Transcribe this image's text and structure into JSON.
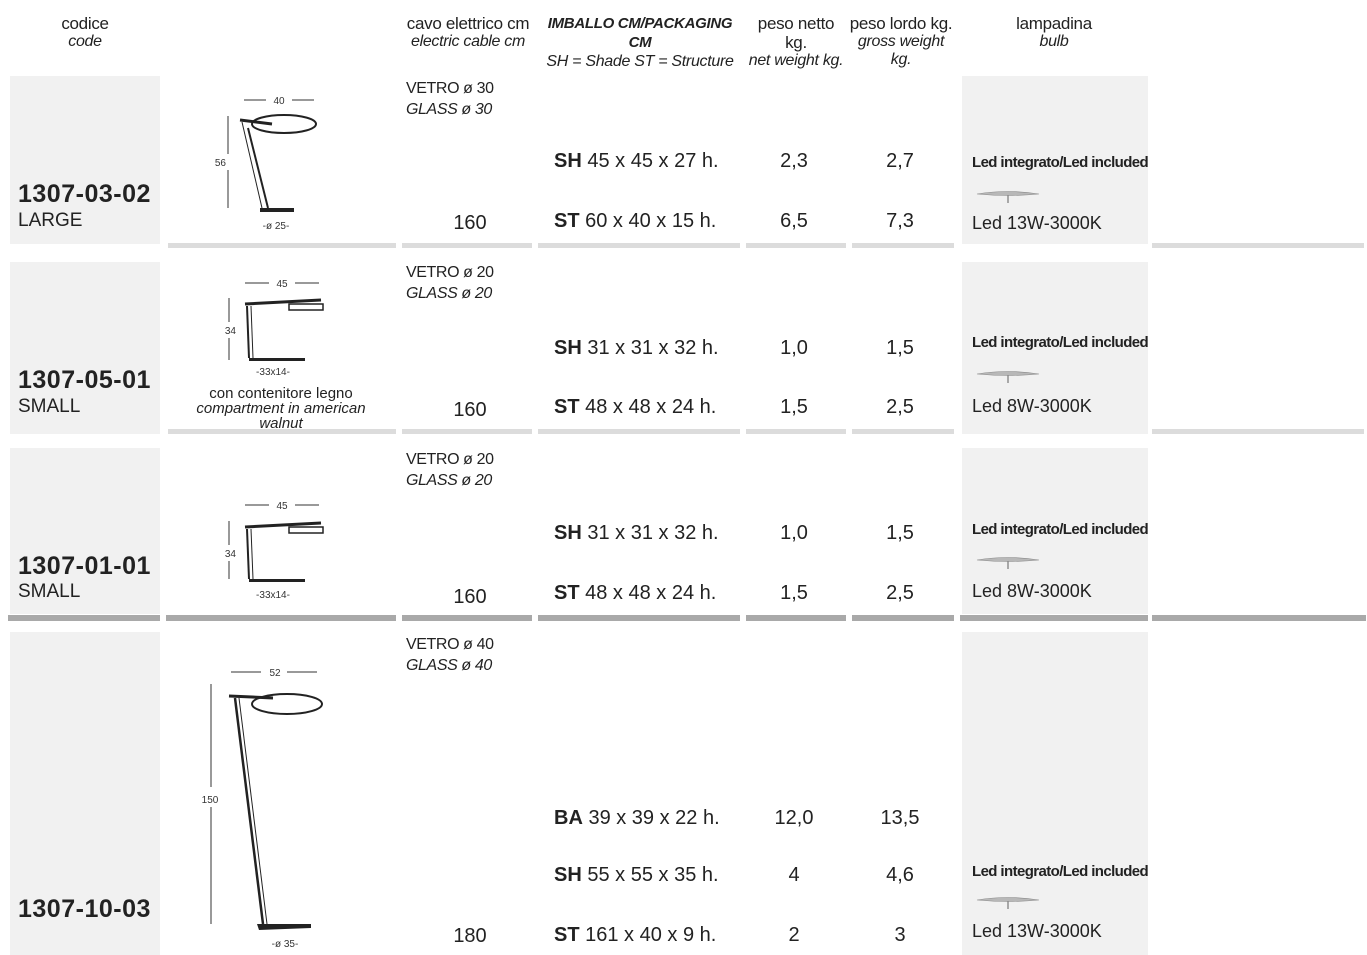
{
  "header": {
    "code_it": "codice",
    "code_en": "code",
    "cable_it": "cavo elettrico cm",
    "cable_en": "electric cable cm",
    "pack_it": "IMBALLO CM/PACKAGING CM",
    "pack_en": "SH = Shade   ST = Structure",
    "net_it": "peso netto kg.",
    "net_en": "net weight kg.",
    "gross_it": "peso lordo kg.",
    "gross_en": "gross weight kg.",
    "bulb_it": "lampadina",
    "bulb_en": "bulb"
  },
  "rows": [
    {
      "code": "1307-03-02",
      "size": "LARGE",
      "glass_it": "VETRO ø 30",
      "glass_en": "GLASS ø 30",
      "cable": "160",
      "packages": [
        {
          "prefix": "SH",
          "dims": " 45 x 45 x 27 h.",
          "net": "2,3",
          "gross": "2,7"
        },
        {
          "prefix": "ST",
          "dims": " 60 x 40 x 15 h.",
          "net": "6,5",
          "gross": "7,3"
        }
      ],
      "led_included": "Led integrato/Led included",
      "lamp": "Led 13W-3000K",
      "dims_drawing": {
        "width": "40",
        "height": "56",
        "base": "-ø 25-"
      }
    },
    {
      "code": "1307-05-01",
      "size": "SMALL",
      "glass_it": "VETRO ø 20",
      "glass_en": "GLASS ø 20",
      "cable": "160",
      "packages": [
        {
          "prefix": "SH",
          "dims": " 31 x 31 x 32 h.",
          "net": "1,0",
          "gross": "1,5"
        },
        {
          "prefix": "ST",
          "dims": " 48 x 48 x 24 h.",
          "net": "1,5",
          "gross": "2,5"
        }
      ],
      "led_included": "Led integrato/Led included",
      "lamp": "Led 8W-3000K",
      "dims_drawing": {
        "width": "45",
        "height": "34",
        "base": "-33x14-"
      },
      "note_line1": "con contenitore legno",
      "note_line2": "compartment in american",
      "note_line3": "walnut"
    },
    {
      "code": "1307-01-01",
      "size": "SMALL",
      "glass_it": "VETRO ø 20",
      "glass_en": "GLASS ø 20",
      "cable": "160",
      "packages": [
        {
          "prefix": "SH",
          "dims": " 31 x 31 x 32 h.",
          "net": "1,0",
          "gross": "1,5"
        },
        {
          "prefix": "ST",
          "dims": " 48 x 48 x 24 h.",
          "net": "1,5",
          "gross": "2,5"
        }
      ],
      "led_included": "Led integrato/Led included",
      "lamp": "Led 8W-3000K",
      "dims_drawing": {
        "width": "45",
        "height": "34",
        "base": "-33x14-"
      }
    },
    {
      "code": "1307-10-03",
      "glass_it": "VETRO ø 40",
      "glass_en": "GLASS ø 40",
      "cable": "180",
      "packages": [
        {
          "prefix": "BA",
          "dims": " 39 x 39 x 22 h.",
          "net": "12,0",
          "gross": "13,5"
        },
        {
          "prefix": "SH",
          "dims": " 55 x 55 x 35 h.",
          "net": "4",
          "gross": "4,6"
        },
        {
          "prefix": "ST",
          "dims": " 161 x 40 x 9 h.",
          "net": "2",
          "gross": "3"
        }
      ],
      "led_included": "Led integrato/Led included",
      "lamp": "Led 13W-3000K",
      "dims_drawing": {
        "width": "52",
        "height": "150",
        "base": "-ø 35-"
      }
    }
  ]
}
